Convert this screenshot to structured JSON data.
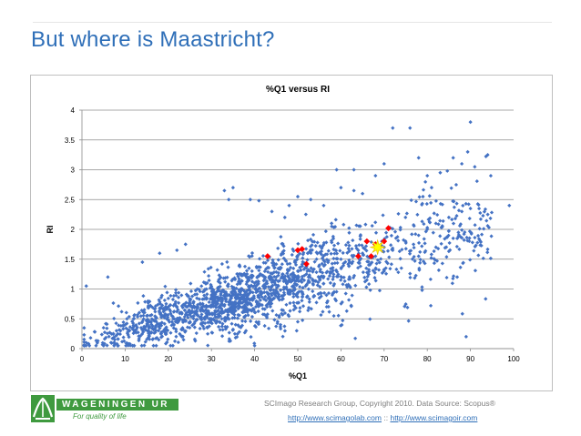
{
  "slide": {
    "title": "But where is Maastricht?"
  },
  "footer": {
    "logo_text": "WAGENINGEN UR",
    "logo_tagline": "For quality of life",
    "credit_line": "SCImago Research Group, Copyright 2010. Data Source: Scopus®",
    "link1": "http://www.scimagolab.com",
    "separator": "::",
    "link2": "http://www.scimagoir.com"
  },
  "colors": {
    "title": "#2f6fb8",
    "series_main": "#4472c4",
    "series_highlight": "#ff0000",
    "star": "#ffff00"
  },
  "chart_data": {
    "type": "scatter",
    "title": "%Q1 versus RI",
    "xlabel": "%Q1",
    "ylabel": "RI",
    "xlim": [
      0,
      100
    ],
    "ylim": [
      0,
      4
    ],
    "xticks": [
      "0",
      "10",
      "20",
      "30",
      "40",
      "50",
      "60",
      "70",
      "80",
      "90",
      "100"
    ],
    "yticks": [
      "0",
      "0.5",
      "1",
      "1.5",
      "2",
      "2.5",
      "3",
      "3.5",
      "4"
    ],
    "grid": "horizontal",
    "legend": "none",
    "series": [
      {
        "role": "institutions",
        "marker": "diamond",
        "color": "#4472c4",
        "approx_count": 1900,
        "trend": {
          "slope": 0.021,
          "intercept": 0.08
        },
        "points": [
          [
            1,
            0.1
          ],
          [
            2,
            0.18
          ],
          [
            3,
            0.28
          ],
          [
            1,
            1.05
          ],
          [
            5,
            0.35
          ],
          [
            8,
            0.3
          ],
          [
            10,
            0.4
          ],
          [
            12,
            0.5
          ],
          [
            15,
            0.55
          ],
          [
            18,
            0.6
          ],
          [
            20,
            0.7
          ],
          [
            22,
            0.62
          ],
          [
            25,
            0.8
          ],
          [
            28,
            0.75
          ],
          [
            30,
            0.9
          ],
          [
            32,
            0.85
          ],
          [
            35,
            1.0
          ],
          [
            38,
            0.95
          ],
          [
            40,
            1.1
          ],
          [
            42,
            1.05
          ],
          [
            45,
            1.2
          ],
          [
            48,
            1.15
          ],
          [
            50,
            1.3
          ],
          [
            52,
            1.25
          ],
          [
            55,
            1.4
          ],
          [
            58,
            1.35
          ],
          [
            60,
            1.5
          ],
          [
            62,
            1.45
          ],
          [
            65,
            1.6
          ],
          [
            68,
            1.55
          ],
          [
            70,
            1.7
          ],
          [
            72,
            1.65
          ],
          [
            75,
            1.8
          ],
          [
            78,
            1.9
          ],
          [
            80,
            2.0
          ],
          [
            82,
            2.1
          ],
          [
            85,
            2.2
          ],
          [
            88,
            2.3
          ],
          [
            90,
            2.35
          ],
          [
            6,
            1.2
          ],
          [
            14,
            1.45
          ],
          [
            18,
            1.6
          ],
          [
            22,
            1.65
          ],
          [
            24,
            1.75
          ],
          [
            29,
            1.1
          ],
          [
            33,
            0.5
          ],
          [
            34,
            2.5
          ],
          [
            35,
            2.7
          ],
          [
            33,
            2.65
          ],
          [
            39,
            2.5
          ],
          [
            41,
            2.48
          ],
          [
            44,
            2.3
          ],
          [
            47,
            2.2
          ],
          [
            48,
            2.4
          ],
          [
            50,
            2.55
          ],
          [
            53,
            2.5
          ],
          [
            56,
            2.4
          ],
          [
            60,
            2.7
          ],
          [
            63,
            2.65
          ],
          [
            65,
            2.6
          ],
          [
            59,
            3.0
          ],
          [
            63,
            3.0
          ],
          [
            68,
            2.9
          ],
          [
            70,
            3.1
          ],
          [
            72,
            3.7
          ],
          [
            76,
            3.7
          ],
          [
            78,
            3.2
          ],
          [
            80,
            2.9
          ],
          [
            79,
            2.55
          ],
          [
            81,
            2.7
          ],
          [
            83,
            2.95
          ],
          [
            86,
            3.2
          ],
          [
            88,
            3.1
          ],
          [
            90,
            3.8
          ],
          [
            91,
            3.05
          ],
          [
            94,
            3.25
          ],
          [
            99,
            2.4
          ],
          [
            92,
            2.35
          ],
          [
            89,
            0.2
          ],
          [
            46,
            0.4
          ],
          [
            50,
            0.45
          ],
          [
            38,
            0.3
          ],
          [
            30,
            0.5
          ],
          [
            55,
            0.85
          ],
          [
            58,
            0.9
          ],
          [
            62,
            1.05
          ],
          [
            66,
            1.15
          ],
          [
            70,
            1.3
          ],
          [
            74,
            1.35
          ],
          [
            78,
            1.55
          ],
          [
            82,
            1.7
          ],
          [
            86,
            1.85
          ]
        ]
      },
      {
        "role": "peer universities",
        "marker": "diamond",
        "color": "#ff0000",
        "points": [
          [
            43,
            1.55
          ],
          [
            50,
            1.65
          ],
          [
            51,
            1.67
          ],
          [
            52,
            1.42
          ],
          [
            64,
            1.55
          ],
          [
            66,
            1.8
          ],
          [
            67,
            1.55
          ],
          [
            68,
            1.75
          ],
          [
            70,
            1.8
          ],
          [
            71,
            2.02
          ]
        ]
      },
      {
        "role": "Maastricht",
        "marker": "star",
        "color": "#ffff00",
        "points": [
          [
            68.5,
            1.7
          ]
        ]
      }
    ]
  }
}
